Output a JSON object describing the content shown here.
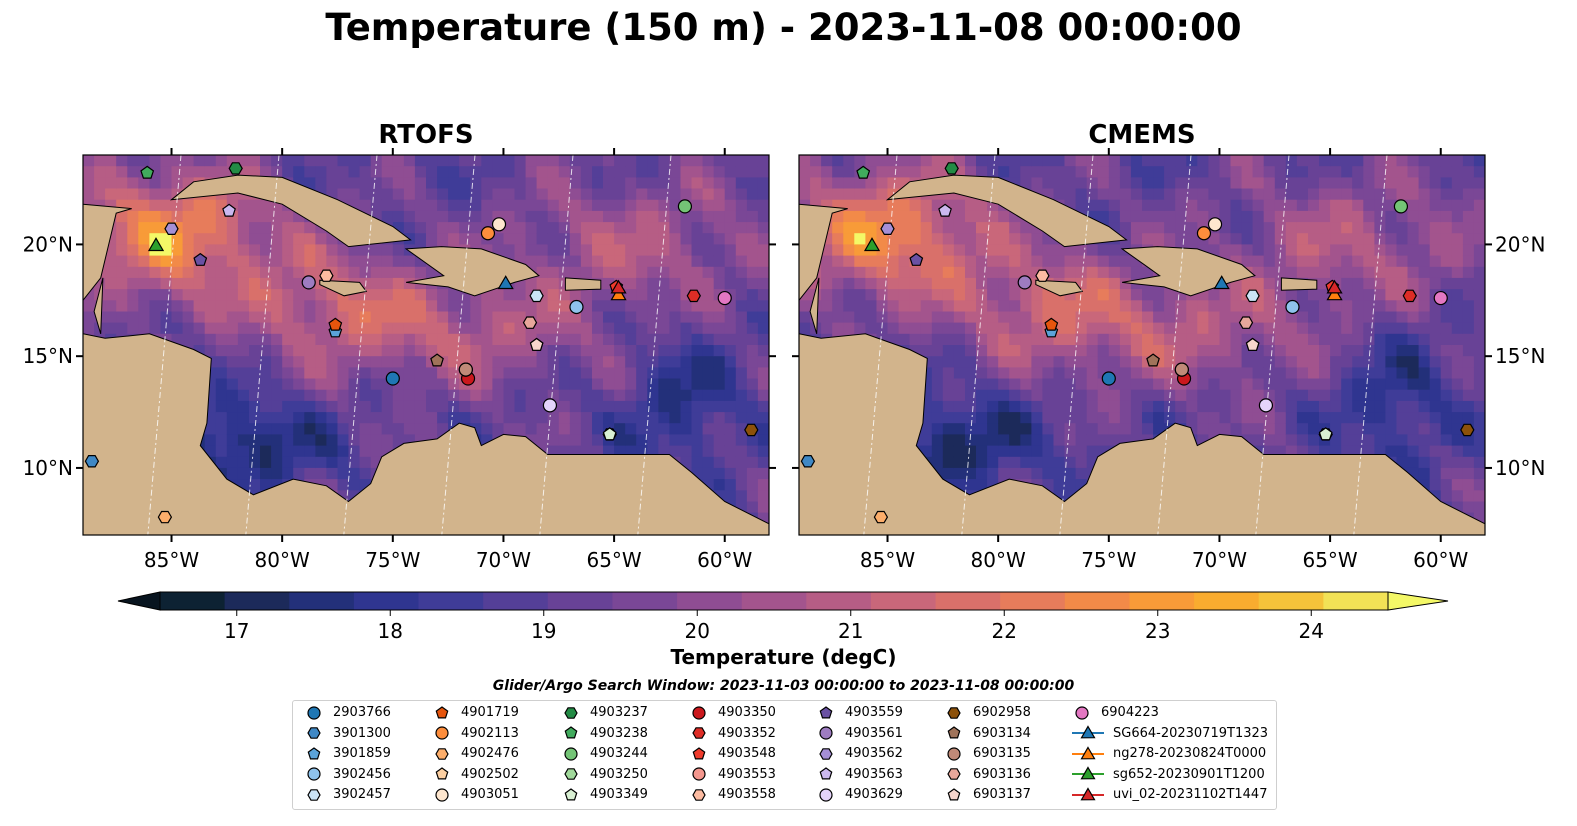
{
  "title": "Temperature (150 m) - 2023-11-08 00:00:00",
  "panels": [
    {
      "title": "RTOFS"
    },
    {
      "title": "CMEMS"
    }
  ],
  "chart_data": {
    "type": "heatmap",
    "subtype": "filled-contour map",
    "lon_range": [
      -89,
      -58
    ],
    "lat_range": [
      7,
      24
    ],
    "x_ticks": [
      {
        "value": -85,
        "label": "85°W"
      },
      {
        "value": -80,
        "label": "80°W"
      },
      {
        "value": -75,
        "label": "75°W"
      },
      {
        "value": -70,
        "label": "70°W"
      },
      {
        "value": -65,
        "label": "65°W"
      },
      {
        "value": -60,
        "label": "60°W"
      }
    ],
    "y_ticks": [
      {
        "value": 20,
        "label": "20°N"
      },
      {
        "value": 15,
        "label": "15°N"
      },
      {
        "value": 10,
        "label": "10°N"
      }
    ],
    "colorbar": {
      "label": "Temperature (degC)",
      "range": [
        16.5,
        24.5
      ],
      "step": 0.5,
      "extend": "both",
      "ticks": [
        17,
        18,
        19,
        20,
        21,
        22,
        23,
        24
      ],
      "colors": [
        "#0d2233",
        "#1c2a5a",
        "#23307a",
        "#2f3590",
        "#3f3c98",
        "#543f98",
        "#684296",
        "#7a4796",
        "#8f4d93",
        "#a3548d",
        "#b65d85",
        "#c9677a",
        "#d9706a",
        "#e77c5b",
        "#f28a48",
        "#f89b38",
        "#f9ac2f",
        "#f5c33a",
        "#f2e256"
      ],
      "over_color": "#f4f867",
      "under_color": "#08141f"
    },
    "land_color": "#d2b48c",
    "shelf_color": "#8fb4e3",
    "grid": true,
    "search_window": "Glider/Argo Search Window: 2023-11-03 00:00:00 to 2023-11-08 00:00:00",
    "floats": [
      {
        "name": "2903766",
        "marker": "circle",
        "color": "#1f77b4",
        "lon": -75.0,
        "lat": 14.0
      },
      {
        "name": "3901300",
        "marker": "hexagon",
        "color": "#3f88c5",
        "lon": -88.6,
        "lat": 10.3
      },
      {
        "name": "3901859",
        "marker": "pentagon",
        "color": "#5ba3d9",
        "lon": -77.6,
        "lat": 16.1
      },
      {
        "name": "3902456",
        "marker": "circle",
        "color": "#8fc3ec",
        "lon": -66.7,
        "lat": 17.2
      },
      {
        "name": "3902457",
        "marker": "hexagon",
        "color": "#cbe4f6",
        "lon": -68.5,
        "lat": 17.7
      },
      {
        "name": "4901719",
        "marker": "pentagon",
        "color": "#e6550d",
        "lon": -77.6,
        "lat": 16.4
      },
      {
        "name": "4902113",
        "marker": "circle",
        "color": "#fd8d3c",
        "lon": -70.7,
        "lat": 20.5
      },
      {
        "name": "4902476",
        "marker": "hexagon",
        "color": "#fdae6b",
        "lon": -85.3,
        "lat": 7.8
      },
      {
        "name": "4902502",
        "marker": "pentagon",
        "color": "#fdd0a2",
        "lon": -68.5,
        "lat": 15.5
      },
      {
        "name": "4903051",
        "marker": "circle",
        "color": "#fee6ce",
        "lon": -70.2,
        "lat": 20.9
      },
      {
        "name": "4903237",
        "marker": "hexagon",
        "color": "#238b45",
        "lon": -82.1,
        "lat": 23.4
      },
      {
        "name": "4903238",
        "marker": "pentagon",
        "color": "#41ab5d",
        "lon": -86.1,
        "lat": 23.2
      },
      {
        "name": "4903244",
        "marker": "circle",
        "color": "#74c476",
        "lon": -61.8,
        "lat": 21.7
      },
      {
        "name": "4903250",
        "marker": "hexagon",
        "color": "#a1d99b",
        "lon": -65.2,
        "lat": 11.5
      },
      {
        "name": "4903349",
        "marker": "pentagon",
        "color": "#d9f0d3",
        "lon": -65.2,
        "lat": 11.5
      },
      {
        "name": "4903350",
        "marker": "circle",
        "color": "#cb181d",
        "lon": -71.6,
        "lat": 14.0
      },
      {
        "name": "4903352",
        "marker": "hexagon",
        "color": "#de2d26",
        "lon": -61.4,
        "lat": 17.7
      },
      {
        "name": "4903548",
        "marker": "pentagon",
        "color": "#ef3b2c",
        "lon": -64.9,
        "lat": 18.1
      },
      {
        "name": "4903553",
        "marker": "circle",
        "color": "#f4978e",
        "lon": -71.7,
        "lat": 14.4
      },
      {
        "name": "4903558",
        "marker": "hexagon",
        "color": "#fcbba1",
        "lon": -78.0,
        "lat": 18.6
      },
      {
        "name": "4903559",
        "marker": "pentagon",
        "color": "#6a51a3",
        "lon": -83.7,
        "lat": 19.3
      },
      {
        "name": "4903561",
        "marker": "circle",
        "color": "#9e7cc1",
        "lon": -78.8,
        "lat": 18.3
      },
      {
        "name": "4903562",
        "marker": "hexagon",
        "color": "#a58fd6",
        "lon": -85.0,
        "lat": 20.7
      },
      {
        "name": "4903563",
        "marker": "pentagon",
        "color": "#cbb8ef",
        "lon": -82.4,
        "lat": 21.5
      },
      {
        "name": "4903629",
        "marker": "circle",
        "color": "#e5d4fa",
        "lon": -67.9,
        "lat": 12.8
      },
      {
        "name": "6902958",
        "marker": "hexagon",
        "color": "#8c510a",
        "lon": -58.8,
        "lat": 11.7
      },
      {
        "name": "6903134",
        "marker": "pentagon",
        "color": "#a0735a",
        "lon": -73.0,
        "lat": 14.8
      },
      {
        "name": "6903135",
        "marker": "circle",
        "color": "#c08a78",
        "lon": -71.7,
        "lat": 14.4
      },
      {
        "name": "6903136",
        "marker": "hexagon",
        "color": "#e7a79b",
        "lon": -68.8,
        "lat": 16.5
      },
      {
        "name": "6903137",
        "marker": "pentagon",
        "color": "#f7d5cc",
        "lon": -68.5,
        "lat": 15.5
      },
      {
        "name": "6904223",
        "marker": "circle",
        "color": "#e377c2",
        "lon": -60.0,
        "lat": 17.6
      },
      {
        "name": "SG664-20230719T1323",
        "marker": "triangle",
        "color": "#1f77b4",
        "lon": -69.9,
        "lat": 18.3
      },
      {
        "name": "ng278-20230824T0000",
        "marker": "triangle",
        "color": "#ff7f0e",
        "lon": -64.8,
        "lat": 17.8
      },
      {
        "name": "sg652-20230901T1200",
        "marker": "triangle",
        "color": "#2ca02c",
        "lon": -85.7,
        "lat": 20.0
      },
      {
        "name": "uvi_02-20231102T1447",
        "marker": "triangle",
        "color": "#d62728",
        "lon": -64.8,
        "lat": 18.1
      }
    ]
  }
}
